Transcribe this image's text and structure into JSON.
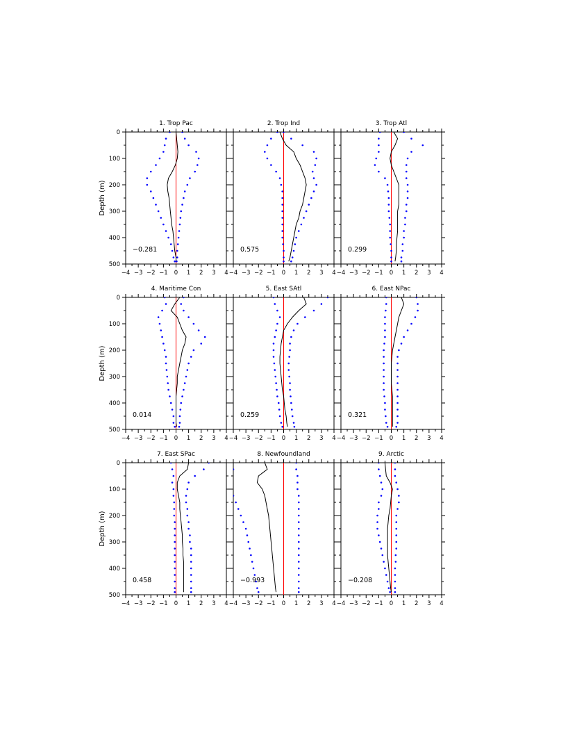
{
  "figure": {
    "ylabel": "Depth (m)"
  },
  "colors": {
    "mean_line": "#000000",
    "spread_dots": "#0000ff",
    "zero_line": "#ff0000"
  },
  "chart_data": [
    {
      "type": "line",
      "title": "1. Trop Pac",
      "xlim": [
        -4,
        4
      ],
      "ylim": [
        500,
        0
      ],
      "xticks": [
        "-4",
        "-3",
        "-2",
        "-1",
        "0",
        "1",
        "2",
        "3",
        "4"
      ],
      "yticks": [
        "0",
        "100",
        "200",
        "300",
        "400",
        "500"
      ],
      "annotation": "-0.281",
      "depth": [
        0,
        25,
        50,
        75,
        100,
        125,
        150,
        175,
        200,
        225,
        250,
        275,
        300,
        325,
        350,
        375,
        400,
        425,
        450,
        475,
        490
      ],
      "series": [
        {
          "values": [
            0.0,
            0.05,
            0.1,
            0.15,
            0.1,
            -0.05,
            -0.3,
            -0.6,
            -0.7,
            -0.65,
            -0.55,
            -0.5,
            -0.45,
            -0.4,
            -0.35,
            -0.25,
            -0.2,
            -0.15,
            -0.1,
            0.0,
            0.0
          ]
        },
        {
          "values": [
            -0.5,
            -0.8,
            -0.9,
            -1.0,
            -1.3,
            -1.6,
            -2.0,
            -2.3,
            -2.3,
            -2.0,
            -1.8,
            -1.6,
            -1.4,
            -1.2,
            -1.0,
            -0.8,
            -0.6,
            -0.4,
            -0.3,
            -0.2,
            -0.1
          ]
        },
        {
          "values": [
            0.5,
            0.7,
            1.0,
            1.6,
            1.8,
            1.7,
            1.5,
            1.1,
            0.9,
            0.7,
            0.6,
            0.5,
            0.4,
            0.35,
            0.3,
            0.25,
            0.2,
            0.15,
            0.1,
            0.1,
            0.05
          ]
        }
      ]
    },
    {
      "type": "line",
      "title": "2. Trop Ind",
      "xlim": [
        -4,
        4
      ],
      "ylim": [
        500,
        0
      ],
      "xticks": [
        "-4",
        "-3",
        "-2",
        "-1",
        "0",
        "1",
        "2",
        "3",
        "4"
      ],
      "yticks": [
        "0",
        "100",
        "200",
        "300",
        "400",
        "500"
      ],
      "annotation": "0.575",
      "depth": [
        0,
        25,
        50,
        75,
        100,
        125,
        150,
        175,
        200,
        225,
        250,
        275,
        300,
        325,
        350,
        375,
        400,
        425,
        450,
        475,
        490
      ],
      "series": [
        {
          "values": [
            -0.3,
            -0.1,
            0.2,
            0.8,
            1.0,
            1.3,
            1.5,
            1.7,
            1.8,
            1.7,
            1.6,
            1.5,
            1.3,
            1.2,
            1.0,
            0.9,
            0.8,
            0.7,
            0.6,
            0.5,
            0.4
          ]
        },
        {
          "values": [
            -0.5,
            -1.0,
            -1.3,
            -1.5,
            -1.3,
            -1.0,
            -0.6,
            -0.3,
            -0.2,
            -0.1,
            -0.1,
            -0.1,
            -0.1,
            -0.1,
            -0.1,
            -0.1,
            -0.1,
            -0.05,
            0.0,
            0.0,
            0.0
          ]
        },
        {
          "values": [
            0.0,
            0.6,
            1.5,
            2.4,
            2.6,
            2.5,
            2.3,
            2.4,
            2.6,
            2.4,
            2.2,
            2.0,
            1.8,
            1.6,
            1.4,
            1.2,
            1.0,
            0.9,
            0.8,
            0.7,
            0.6
          ]
        }
      ]
    },
    {
      "type": "line",
      "title": "3. Trop Atl",
      "xlim": [
        -4,
        4
      ],
      "ylim": [
        500,
        0
      ],
      "xticks": [
        "-4",
        "-3",
        "-2",
        "-1",
        "0",
        "1",
        "2",
        "3",
        "4"
      ],
      "yticks": [
        "0",
        "100",
        "200",
        "300",
        "400",
        "500"
      ],
      "annotation": "0.299",
      "depth": [
        0,
        25,
        50,
        75,
        100,
        125,
        150,
        175,
        200,
        225,
        250,
        275,
        300,
        325,
        350,
        375,
        400,
        425,
        450,
        475,
        490
      ],
      "series": [
        {
          "values": [
            0.2,
            0.5,
            0.3,
            0.0,
            -0.1,
            0.0,
            0.2,
            0.4,
            0.6,
            0.6,
            0.6,
            0.6,
            0.5,
            0.5,
            0.5,
            0.5,
            0.45,
            0.4,
            0.4,
            0.35,
            0.3
          ]
        },
        {
          "values": [
            -0.9,
            -1.0,
            -1.0,
            -1.0,
            -1.2,
            -1.3,
            -1.0,
            -0.5,
            -0.3,
            -0.25,
            -0.2,
            -0.2,
            -0.2,
            -0.15,
            -0.1,
            -0.1,
            -0.1,
            -0.05,
            0.0,
            0.0,
            0.0
          ]
        },
        {
          "values": [
            1.0,
            1.6,
            2.5,
            1.6,
            1.3,
            1.2,
            1.2,
            1.2,
            1.3,
            1.3,
            1.3,
            1.2,
            1.2,
            1.1,
            1.1,
            1.0,
            1.0,
            0.9,
            0.9,
            0.8,
            0.8
          ]
        }
      ]
    },
    {
      "type": "line",
      "title": "4. Maritime Con",
      "xlim": [
        -4,
        4
      ],
      "ylim": [
        500,
        0
      ],
      "xticks": [
        "-4",
        "-3",
        "-2",
        "-1",
        "0",
        "1",
        "2",
        "3",
        "4"
      ],
      "yticks": [
        "0",
        "100",
        "200",
        "300",
        "400",
        "500"
      ],
      "annotation": "0.014",
      "depth": [
        0,
        25,
        50,
        75,
        100,
        125,
        150,
        175,
        200,
        225,
        250,
        275,
        300,
        325,
        350,
        375,
        400,
        425,
        450,
        475,
        490
      ],
      "series": [
        {
          "values": [
            0.3,
            -0.1,
            -0.4,
            0.1,
            0.3,
            0.5,
            0.8,
            0.7,
            0.5,
            0.4,
            0.3,
            0.2,
            0.1,
            0.1,
            0.05,
            0.0,
            0.0,
            0.0,
            0.0,
            0.0,
            0.05
          ]
        },
        {
          "values": [
            -0.9,
            -0.8,
            -1.1,
            -1.4,
            -1.3,
            -1.2,
            -1.1,
            -1.0,
            -0.9,
            -0.8,
            -0.8,
            -0.75,
            -0.7,
            -0.65,
            -0.6,
            -0.5,
            -0.4,
            -0.3,
            -0.2,
            -0.2,
            -0.1
          ]
        },
        {
          "values": [
            0.6,
            0.4,
            0.6,
            1.0,
            1.4,
            1.8,
            2.3,
            2.0,
            1.4,
            1.2,
            1.0,
            0.9,
            0.8,
            0.7,
            0.6,
            0.5,
            0.4,
            0.35,
            0.3,
            0.3,
            0.25
          ]
        }
      ]
    },
    {
      "type": "line",
      "title": "5. East SAtl",
      "xlim": [
        -4,
        4
      ],
      "ylim": [
        500,
        0
      ],
      "xticks": [
        "-4",
        "-3",
        "-2",
        "-1",
        "0",
        "1",
        "2",
        "3",
        "4"
      ],
      "yticks": [
        "0",
        "100",
        "200",
        "300",
        "400",
        "500"
      ],
      "annotation": "0.259",
      "depth": [
        0,
        25,
        50,
        75,
        100,
        125,
        150,
        175,
        200,
        225,
        250,
        275,
        300,
        325,
        350,
        375,
        400,
        425,
        450,
        475,
        490
      ],
      "series": [
        {
          "values": [
            1.6,
            1.8,
            1.2,
            0.7,
            0.3,
            0.0,
            -0.1,
            -0.2,
            -0.25,
            -0.3,
            -0.3,
            -0.25,
            -0.2,
            -0.15,
            -0.1,
            0.0,
            0.05,
            0.1,
            0.2,
            0.25,
            0.3
          ]
        },
        {
          "values": [
            -0.8,
            -0.7,
            -0.5,
            -0.3,
            -0.5,
            -0.6,
            -0.7,
            -0.8,
            -0.8,
            -0.8,
            -0.75,
            -0.7,
            -0.65,
            -0.6,
            -0.55,
            -0.5,
            -0.4,
            -0.35,
            -0.3,
            -0.2,
            -0.1
          ]
        },
        {
          "values": [
            3.5,
            3.0,
            2.4,
            1.7,
            1.1,
            0.8,
            0.6,
            0.5,
            0.5,
            0.45,
            0.4,
            0.4,
            0.45,
            0.5,
            0.5,
            0.55,
            0.6,
            0.65,
            0.7,
            0.8,
            0.85
          ]
        }
      ]
    },
    {
      "type": "line",
      "title": "6. East NPac",
      "xlim": [
        -4,
        4
      ],
      "ylim": [
        500,
        0
      ],
      "xticks": [
        "-4",
        "-3",
        "-2",
        "-1",
        "0",
        "1",
        "2",
        "3",
        "4"
      ],
      "yticks": [
        "0",
        "100",
        "200",
        "300",
        "400",
        "500"
      ],
      "annotation": "0.321",
      "depth": [
        0,
        25,
        50,
        75,
        100,
        125,
        150,
        175,
        200,
        225,
        250,
        275,
        300,
        325,
        350,
        375,
        400,
        425,
        450,
        475,
        490
      ],
      "series": [
        {
          "values": [
            0.8,
            1.0,
            0.8,
            0.6,
            0.5,
            0.4,
            0.3,
            0.2,
            0.1,
            0.05,
            0.0,
            0.0,
            0.0,
            0.0,
            0.05,
            0.1,
            0.1,
            0.1,
            0.1,
            0.1,
            0.1
          ]
        },
        {
          "values": [
            -0.4,
            -0.4,
            -0.45,
            -0.5,
            -0.5,
            -0.5,
            -0.5,
            -0.55,
            -0.6,
            -0.6,
            -0.6,
            -0.6,
            -0.6,
            -0.6,
            -0.6,
            -0.55,
            -0.5,
            -0.5,
            -0.45,
            -0.4,
            -0.3
          ]
        },
        {
          "values": [
            2.0,
            2.1,
            2.1,
            1.9,
            1.6,
            1.3,
            1.0,
            0.8,
            0.6,
            0.5,
            0.5,
            0.5,
            0.5,
            0.5,
            0.5,
            0.5,
            0.5,
            0.5,
            0.5,
            0.5,
            0.4
          ]
        }
      ]
    },
    {
      "type": "line",
      "title": "7. East SPac",
      "xlim": [
        -4,
        4
      ],
      "ylim": [
        500,
        0
      ],
      "xticks": [
        "-4",
        "-3",
        "-2",
        "-1",
        "0",
        "1",
        "2",
        "3",
        "4"
      ],
      "yticks": [
        "0",
        "100",
        "200",
        "300",
        "400",
        "500"
      ],
      "annotation": "0.458",
      "depth": [
        0,
        25,
        50,
        75,
        100,
        125,
        150,
        175,
        200,
        225,
        250,
        275,
        300,
        325,
        350,
        375,
        400,
        425,
        450,
        475,
        490
      ],
      "series": [
        {
          "values": [
            1.0,
            0.9,
            0.3,
            0.1,
            0.1,
            0.2,
            0.3,
            0.3,
            0.35,
            0.4,
            0.45,
            0.5,
            0.5,
            0.55,
            0.55,
            0.6,
            0.6,
            0.6,
            0.6,
            0.6,
            0.6
          ]
        },
        {
          "values": [
            -0.4,
            -0.3,
            -0.2,
            -0.3,
            -0.2,
            -0.2,
            -0.15,
            -0.15,
            -0.15,
            -0.1,
            -0.1,
            -0.1,
            -0.1,
            -0.1,
            -0.1,
            -0.1,
            -0.1,
            -0.1,
            -0.1,
            -0.1,
            -0.1
          ]
        },
        {
          "values": [
            2.6,
            2.2,
            1.5,
            1.0,
            0.9,
            0.8,
            0.8,
            0.9,
            0.9,
            1.0,
            1.0,
            1.1,
            1.1,
            1.2,
            1.2,
            1.2,
            1.2,
            1.2,
            1.2,
            1.2,
            1.2
          ]
        }
      ]
    },
    {
      "type": "line",
      "title": "8. Newfoundland",
      "xlim": [
        -4,
        4
      ],
      "ylim": [
        500,
        0
      ],
      "xticks": [
        "-4",
        "-3",
        "-2",
        "-1",
        "0",
        "1",
        "2",
        "3",
        "4"
      ],
      "yticks": [
        "0",
        "100",
        "200",
        "300",
        "400",
        "500"
      ],
      "annotation": "-0.993",
      "depth": [
        0,
        25,
        50,
        75,
        100,
        125,
        150,
        175,
        200,
        225,
        250,
        275,
        300,
        325,
        350,
        375,
        400,
        425,
        450,
        475,
        490
      ],
      "series": [
        {
          "values": [
            -1.5,
            -1.3,
            -2.0,
            -2.1,
            -1.7,
            -1.5,
            -1.4,
            -1.3,
            -1.2,
            -1.15,
            -1.1,
            -1.05,
            -1.0,
            -0.95,
            -0.9,
            -0.85,
            -0.8,
            -0.75,
            -0.7,
            -0.65,
            -0.6
          ]
        },
        {
          "values": [
            -4.2,
            -4.0,
            -4.3,
            -4.4,
            -4.2,
            -4.0,
            -3.8,
            -3.6,
            -3.4,
            -3.2,
            -3.0,
            -2.9,
            -2.8,
            -2.7,
            -2.6,
            -2.5,
            -2.4,
            -2.3,
            -2.2,
            -2.1,
            -2.0
          ]
        },
        {
          "values": [
            1.0,
            1.0,
            1.1,
            1.1,
            1.1,
            1.2,
            1.2,
            1.2,
            1.2,
            1.2,
            1.2,
            1.2,
            1.2,
            1.2,
            1.2,
            1.2,
            1.2,
            1.2,
            1.2,
            1.2,
            1.2
          ]
        }
      ]
    },
    {
      "type": "line",
      "title": "9. Arctic",
      "xlim": [
        -4,
        4
      ],
      "ylim": [
        500,
        0
      ],
      "xticks": [
        "-4",
        "-3",
        "-2",
        "-1",
        "0",
        "1",
        "2",
        "3",
        "4"
      ],
      "yticks": [
        "0",
        "100",
        "200",
        "300",
        "400",
        "500"
      ],
      "annotation": "-0.208",
      "depth": [
        0,
        25,
        50,
        75,
        100,
        125,
        150,
        175,
        200,
        225,
        250,
        275,
        300,
        325,
        350,
        375,
        400,
        425,
        450,
        475,
        490
      ],
      "series": [
        {
          "values": [
            -0.5,
            -0.45,
            -0.4,
            -0.1,
            0.1,
            0.0,
            -0.05,
            -0.1,
            -0.2,
            -0.25,
            -0.3,
            -0.3,
            -0.3,
            -0.3,
            -0.3,
            -0.25,
            -0.2,
            -0.15,
            -0.1,
            -0.05,
            0.0
          ]
        },
        {
          "values": [
            -1.0,
            -1.0,
            -0.9,
            -0.8,
            -0.7,
            -0.8,
            -1.0,
            -1.0,
            -1.1,
            -1.1,
            -1.1,
            -1.0,
            -0.9,
            -0.8,
            -0.7,
            -0.6,
            -0.5,
            -0.4,
            -0.3,
            -0.2,
            -0.1
          ]
        },
        {
          "values": [
            0.3,
            0.3,
            0.3,
            0.4,
            0.5,
            0.6,
            0.6,
            0.5,
            0.4,
            0.4,
            0.4,
            0.4,
            0.4,
            0.4,
            0.35,
            0.35,
            0.3,
            0.3,
            0.3,
            0.3,
            0.3
          ]
        }
      ]
    }
  ]
}
